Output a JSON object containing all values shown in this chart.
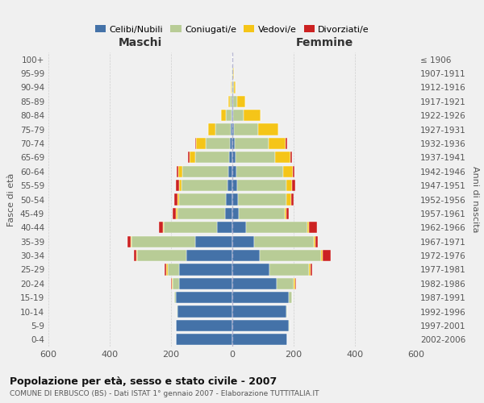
{
  "age_groups": [
    "0-4",
    "5-9",
    "10-14",
    "15-19",
    "20-24",
    "25-29",
    "30-34",
    "35-39",
    "40-44",
    "45-49",
    "50-54",
    "55-59",
    "60-64",
    "65-69",
    "70-74",
    "75-79",
    "80-84",
    "85-89",
    "90-94",
    "95-99",
    "100+"
  ],
  "birth_years": [
    "2002-2006",
    "1997-2001",
    "1992-1996",
    "1987-1991",
    "1982-1986",
    "1977-1981",
    "1972-1976",
    "1967-1971",
    "1962-1966",
    "1957-1961",
    "1952-1956",
    "1947-1951",
    "1942-1946",
    "1937-1941",
    "1932-1936",
    "1927-1931",
    "1922-1926",
    "1917-1921",
    "1912-1916",
    "1907-1911",
    "≤ 1906"
  ],
  "maschi": {
    "celibi": [
      185,
      185,
      180,
      185,
      175,
      175,
      150,
      120,
      50,
      25,
      20,
      15,
      12,
      10,
      8,
      5,
      2,
      0,
      0,
      0,
      0
    ],
    "coniugati": [
      0,
      0,
      2,
      5,
      20,
      35,
      160,
      210,
      175,
      155,
      155,
      150,
      150,
      110,
      80,
      50,
      20,
      8,
      3,
      2,
      0
    ],
    "vedovi": [
      0,
      0,
      0,
      0,
      3,
      5,
      2,
      2,
      2,
      3,
      5,
      8,
      15,
      20,
      30,
      25,
      15,
      5,
      2,
      0,
      0
    ],
    "divorziati": [
      0,
      0,
      0,
      0,
      3,
      5,
      10,
      10,
      12,
      12,
      10,
      10,
      5,
      5,
      2,
      0,
      0,
      0,
      0,
      0,
      0
    ]
  },
  "femmine": {
    "nubili": [
      180,
      185,
      175,
      185,
      145,
      120,
      90,
      70,
      45,
      20,
      18,
      15,
      12,
      10,
      8,
      5,
      2,
      2,
      0,
      0,
      0
    ],
    "coniugate": [
      0,
      2,
      5,
      10,
      55,
      130,
      200,
      195,
      200,
      150,
      158,
      160,
      155,
      130,
      110,
      80,
      35,
      15,
      5,
      2,
      0
    ],
    "vedove": [
      0,
      0,
      0,
      0,
      5,
      5,
      5,
      5,
      5,
      5,
      15,
      20,
      30,
      50,
      55,
      65,
      55,
      25,
      5,
      2,
      0
    ],
    "divorziate": [
      0,
      0,
      0,
      0,
      2,
      5,
      25,
      10,
      25,
      10,
      10,
      10,
      5,
      5,
      5,
      0,
      0,
      0,
      0,
      0,
      0
    ]
  },
  "colors": {
    "celibi_nubili": "#4472a8",
    "coniugati": "#b8cc96",
    "vedovi": "#f5c518",
    "divorziati": "#cc2222"
  },
  "xlim": 600,
  "title": "Popolazione per età, sesso e stato civile - 2007",
  "subtitle": "COMUNE DI ERBUSCO (BS) - Dati ISTAT 1° gennaio 2007 - Elaborazione TUTTITALIA.IT",
  "xlabel_maschi": "Maschi",
  "xlabel_femmine": "Femmine",
  "ylabel": "Fasce di età",
  "ylabel_right": "Anni di nascita",
  "legend": [
    "Celibi/Nubili",
    "Coniugati/e",
    "Vedovi/e",
    "Divorziati/e"
  ],
  "background_color": "#f0f0f0"
}
